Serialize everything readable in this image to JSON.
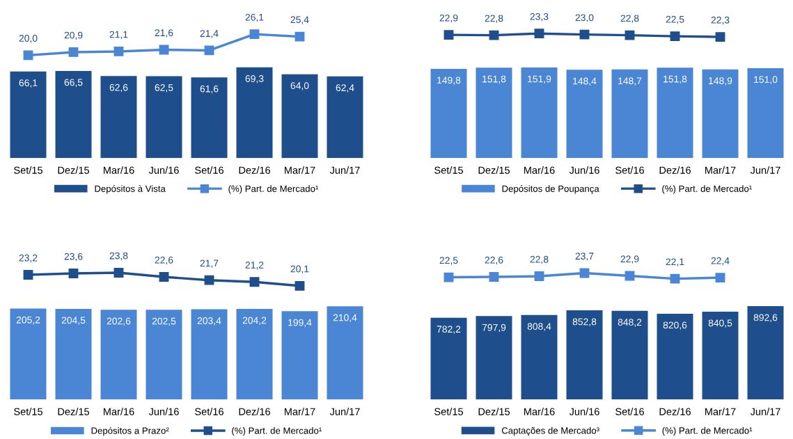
{
  "chart_data": [
    {
      "type": "bar",
      "categories": [
        "Set/15",
        "Dez/15",
        "Mar/16",
        "Jun/16",
        "Set/16",
        "Dez/16",
        "Mar/17",
        "Jun/17"
      ],
      "ylim": [
        0,
        115
      ],
      "y2lim": [
        -10,
        34
      ],
      "tick_labels": "x",
      "legend": "bottom",
      "grid": false,
      "series": [
        {
          "name": "Depósitos à Vista",
          "color": "#1f4e8c",
          "values": [
            66.1,
            66.5,
            62.6,
            62.5,
            61.6,
            69.3,
            64.0,
            62.4
          ],
          "value_labels": [
            "66,1",
            "66,5",
            "62,6",
            "62,5",
            "61,6",
            "69,3",
            "64,0",
            "62,4"
          ]
        },
        {
          "name": "(%) Part. de Mercado¹",
          "type": "line",
          "axis": "y2",
          "marker": "square",
          "color": "#4a86d4",
          "values": [
            20.0,
            20.9,
            21.1,
            21.6,
            21.4,
            26.1,
            25.4,
            null
          ],
          "value_labels": [
            "20,0",
            "20,9",
            "21,1",
            "21,6",
            "21,4",
            "26,1",
            "25,4",
            null
          ]
        }
      ]
    },
    {
      "type": "bar",
      "categories": [
        "Set/15",
        "Dez/15",
        "Mar/16",
        "Jun/16",
        "Set/16",
        "Dez/16",
        "Mar/17",
        "Jun/17"
      ],
      "ylim": [
        0,
        253
      ],
      "y2lim": [
        -13,
        31
      ],
      "tick_labels": "x",
      "legend": "bottom",
      "grid": false,
      "series": [
        {
          "name": "Depósitos de Poupança",
          "color": "#4a86d4",
          "values": [
            149.8,
            151.8,
            151.9,
            148.4,
            148.7,
            151.8,
            148.9,
            151.0
          ],
          "value_labels": [
            "149,8",
            "151,8",
            "151,9",
            "148,4",
            "148,7",
            "151,8",
            "148,9",
            "151,0"
          ]
        },
        {
          "name": "(%) Part. de Mercado¹",
          "type": "line",
          "axis": "y2",
          "marker": "square",
          "color": "#1f4e8c",
          "values": [
            22.9,
            22.8,
            23.3,
            23.0,
            22.8,
            22.5,
            22.3,
            null
          ],
          "value_labels": [
            "22,9",
            "22,8",
            "23,3",
            "23,0",
            "22,8",
            "22,5",
            "22,3",
            null
          ]
        }
      ]
    },
    {
      "type": "bar",
      "categories": [
        "Set/15",
        "Dez/15",
        "Mar/16",
        "Jun/16",
        "Set/16",
        "Dez/16",
        "Mar/17",
        "Jun/17"
      ],
      "ylim": [
        0,
        351
      ],
      "y2lim": [
        -12,
        32
      ],
      "tick_labels": "x",
      "legend": "bottom",
      "grid": false,
      "series": [
        {
          "name": "Depósitos a Prazo²",
          "color": "#4a86d4",
          "values": [
            205.2,
            204.5,
            202.6,
            202.5,
            203.4,
            204.2,
            199.4,
            210.4
          ],
          "value_labels": [
            "205,2",
            "204,5",
            "202,6",
            "202,5",
            "203,4",
            "204,2",
            "199,4",
            "210,4"
          ]
        },
        {
          "name": "(%) Part. de Mercado¹",
          "type": "line",
          "axis": "y2",
          "marker": "square",
          "color": "#1f4e8c",
          "values": [
            23.2,
            23.6,
            23.8,
            22.6,
            21.7,
            21.2,
            20.1,
            null
          ],
          "value_labels": [
            "23,2",
            "23,6",
            "23,8",
            "22,6",
            "21,7",
            "21,2",
            "20,1",
            null
          ]
        }
      ]
    },
    {
      "type": "bar",
      "categories": [
        "Set/15",
        "Dez/15",
        "Mar/16",
        "Jun/16",
        "Set/16",
        "Dez/16",
        "Mar/17",
        "Jun/17"
      ],
      "ylim": [
        0,
        1488
      ],
      "y2lim": [
        -12,
        32
      ],
      "tick_labels": "x",
      "legend": "bottom",
      "grid": false,
      "series": [
        {
          "name": "Captações de Mercado³",
          "color": "#1f4e8c",
          "values": [
            782.2,
            797.9,
            808.4,
            852.8,
            848.2,
            820.6,
            840.5,
            892.6
          ],
          "value_labels": [
            "782,2",
            "797,9",
            "808,4",
            "852,8",
            "848,2",
            "820,6",
            "840,5",
            "892,6"
          ]
        },
        {
          "name": "(%) Part. de Mercado¹",
          "type": "line",
          "axis": "y2",
          "marker": "square",
          "color": "#4a86d4",
          "values": [
            22.5,
            22.6,
            22.8,
            23.7,
            22.9,
            22.1,
            22.4,
            null
          ],
          "value_labels": [
            "22,5",
            "22,6",
            "22,8",
            "23,7",
            "22,9",
            "22,1",
            "22,4",
            null
          ]
        }
      ]
    }
  ]
}
